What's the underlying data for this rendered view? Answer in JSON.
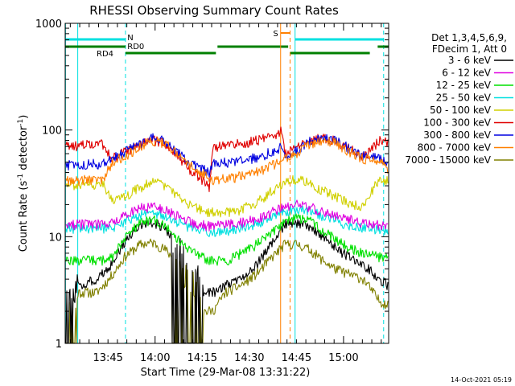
{
  "chart_data": {
    "type": "line",
    "title": "RHESSI Observing Summary Count Rates",
    "xlabel": "Start Time (29-Mar-08 13:31:22)",
    "ylabel_main": "Count Rate (s",
    "ylabel_sup1": "-1",
    "ylabel_mid": " detector",
    "ylabel_sup2": "-1",
    "ylabel_end": ")",
    "y_scale": "log",
    "ylim": [
      1,
      1000
    ],
    "y_ticks": [
      {
        "value": 1,
        "label": "1"
      },
      {
        "value": 10,
        "label": "10"
      },
      {
        "value": 100,
        "label": "100"
      },
      {
        "value": 1000,
        "label": "1000"
      }
    ],
    "xlim_minutes": [
      0,
      103
    ],
    "x_ticks": [
      {
        "minutes": 13.63,
        "label": "13:45"
      },
      {
        "minutes": 28.63,
        "label": "14:00"
      },
      {
        "minutes": 43.63,
        "label": "14:15"
      },
      {
        "minutes": 58.63,
        "label": "14:30"
      },
      {
        "minutes": 73.63,
        "label": "14:45"
      },
      {
        "minutes": 88.63,
        "label": "15:00"
      }
    ],
    "legend": {
      "placement": "right",
      "header": [
        "Det 1,3,4,5,6,9,",
        "FDecim 1, Att 0"
      ],
      "entries": [
        {
          "label": "3 - 6 keV",
          "color": "#000000"
        },
        {
          "label": "6 - 12 keV",
          "color": "#e000e0"
        },
        {
          "label": "12 - 25 keV",
          "color": "#00e000"
        },
        {
          "label": "25 - 50 keV",
          "color": "#00e0e0"
        },
        {
          "label": "50 - 100 keV",
          "color": "#d0d000"
        },
        {
          "label": "100 - 300 keV",
          "color": "#e00000"
        },
        {
          "label": "300 - 800 keV",
          "color": "#0000e0"
        },
        {
          "label": "800 - 7000 keV",
          "color": "#ff8000"
        },
        {
          "label": "7000 - 15000 keV",
          "color": "#808000"
        }
      ]
    },
    "flag_labels": {
      "night": "N",
      "rd0": "RD0",
      "rd4": "RD4",
      "saa": "S"
    },
    "timestamp": "14-Oct-2021 05:19",
    "series": [
      {
        "color": "#808000",
        "gaps": [
          [
            0,
            4
          ],
          [
            34,
            44
          ]
        ],
        "points": [
          [
            0,
            2.0
          ],
          [
            3,
            2.0
          ],
          [
            4,
            3.0
          ],
          [
            10,
            3.0
          ],
          [
            14,
            4.0
          ],
          [
            19,
            6.5
          ],
          [
            24,
            8.5
          ],
          [
            28,
            8.8
          ],
          [
            32,
            7.5
          ],
          [
            35,
            6.0
          ],
          [
            39,
            4.0
          ],
          [
            43,
            3.5
          ],
          [
            44,
            2.0
          ],
          [
            47,
            2.0
          ],
          [
            51,
            3.0
          ],
          [
            56,
            3.5
          ],
          [
            61,
            4.5
          ],
          [
            66,
            6.5
          ],
          [
            70,
            8.5
          ],
          [
            74,
            8.5
          ],
          [
            78,
            7.5
          ],
          [
            82,
            6.0
          ],
          [
            86,
            5.0
          ],
          [
            90,
            4.5
          ],
          [
            95,
            4.0
          ],
          [
            100,
            2.5
          ],
          [
            103,
            2.3
          ]
        ]
      },
      {
        "color": "#000000",
        "gaps": [
          [
            0,
            4
          ],
          [
            34,
            44
          ]
        ],
        "points": [
          [
            0,
            3.0
          ],
          [
            3,
            3.0
          ],
          [
            4,
            3.5
          ],
          [
            10,
            4.0
          ],
          [
            14,
            5.0
          ],
          [
            19,
            9.0
          ],
          [
            24,
            13.0
          ],
          [
            28,
            13.5
          ],
          [
            32,
            12.0
          ],
          [
            35,
            9.0
          ],
          [
            39,
            6.0
          ],
          [
            43,
            4.5
          ],
          [
            44,
            3.0
          ],
          [
            47,
            3.0
          ],
          [
            51,
            3.5
          ],
          [
            56,
            4.0
          ],
          [
            61,
            5.5
          ],
          [
            66,
            9.0
          ],
          [
            70,
            13.0
          ],
          [
            74,
            13.5
          ],
          [
            78,
            12.5
          ],
          [
            82,
            10.0
          ],
          [
            86,
            8.0
          ],
          [
            90,
            6.5
          ],
          [
            95,
            5.5
          ],
          [
            100,
            4.0
          ],
          [
            103,
            3.5
          ]
        ]
      },
      {
        "color": "#00e000",
        "gaps": [],
        "points": [
          [
            0,
            6.0
          ],
          [
            6,
            6.0
          ],
          [
            12,
            6.0
          ],
          [
            15,
            6.5
          ],
          [
            19,
            10.0
          ],
          [
            24,
            13.5
          ],
          [
            28,
            14.5
          ],
          [
            32,
            13.0
          ],
          [
            35,
            10.0
          ],
          [
            39,
            7.5
          ],
          [
            43,
            6.5
          ],
          [
            46,
            6.0
          ],
          [
            52,
            6.0
          ],
          [
            56,
            7.0
          ],
          [
            61,
            8.5
          ],
          [
            66,
            11.0
          ],
          [
            70,
            14.0
          ],
          [
            74,
            15.0
          ],
          [
            78,
            14.0
          ],
          [
            82,
            11.5
          ],
          [
            86,
            9.5
          ],
          [
            90,
            8.0
          ],
          [
            95,
            7.0
          ],
          [
            100,
            6.5
          ],
          [
            103,
            6.5
          ]
        ]
      },
      {
        "color": "#00e0e0",
        "gaps": [],
        "points": [
          [
            0,
            12.0
          ],
          [
            6,
            12.0
          ],
          [
            12,
            12.0
          ],
          [
            15,
            12.0
          ],
          [
            19,
            14.0
          ],
          [
            24,
            16.0
          ],
          [
            28,
            17.0
          ],
          [
            32,
            15.5
          ],
          [
            35,
            14.0
          ],
          [
            39,
            12.5
          ],
          [
            43,
            11.5
          ],
          [
            46,
            11.0
          ],
          [
            52,
            11.5
          ],
          [
            56,
            12.0
          ],
          [
            61,
            13.0
          ],
          [
            66,
            15.5
          ],
          [
            70,
            17.5
          ],
          [
            74,
            18.0
          ],
          [
            78,
            17.5
          ],
          [
            82,
            15.5
          ],
          [
            86,
            14.0
          ],
          [
            90,
            13.0
          ],
          [
            95,
            12.0
          ],
          [
            100,
            11.5
          ],
          [
            103,
            11.5
          ]
        ]
      },
      {
        "color": "#e000e0",
        "gaps": [],
        "points": [
          [
            0,
            13.0
          ],
          [
            6,
            13.0
          ],
          [
            12,
            13.0
          ],
          [
            15,
            13.5
          ],
          [
            19,
            16.0
          ],
          [
            24,
            18.5
          ],
          [
            28,
            19.0
          ],
          [
            32,
            18.0
          ],
          [
            35,
            16.0
          ],
          [
            39,
            14.0
          ],
          [
            43,
            13.0
          ],
          [
            46,
            12.5
          ],
          [
            52,
            13.0
          ],
          [
            56,
            13.5
          ],
          [
            61,
            14.5
          ],
          [
            66,
            17.0
          ],
          [
            70,
            19.0
          ],
          [
            74,
            20.0
          ],
          [
            78,
            19.0
          ],
          [
            82,
            17.0
          ],
          [
            86,
            15.5
          ],
          [
            90,
            14.5
          ],
          [
            95,
            13.5
          ],
          [
            100,
            13.0
          ],
          [
            103,
            12.5
          ]
        ]
      },
      {
        "color": "#d0d000",
        "gaps": [],
        "points": [
          [
            0,
            30.0
          ],
          [
            6,
            31.0
          ],
          [
            12,
            31.0
          ],
          [
            15,
            21.0
          ],
          [
            19,
            24.0
          ],
          [
            24,
            29.0
          ],
          [
            28,
            33.0
          ],
          [
            32,
            29.0
          ],
          [
            35,
            25.0
          ],
          [
            39,
            20.0
          ],
          [
            43,
            18.0
          ],
          [
            46,
            17.0
          ],
          [
            52,
            17.0
          ],
          [
            56,
            18.0
          ],
          [
            61,
            21.0
          ],
          [
            66,
            27.0
          ],
          [
            70,
            33.0
          ],
          [
            74,
            35.0
          ],
          [
            78,
            32.0
          ],
          [
            82,
            27.0
          ],
          [
            86,
            24.0
          ],
          [
            90,
            21.0
          ],
          [
            95,
            19.0
          ],
          [
            100,
            35.0
          ],
          [
            103,
            33.0
          ]
        ]
      },
      {
        "color": "#e00000",
        "gaps": [],
        "points": [
          [
            0,
            70.0
          ],
          [
            6,
            72.0
          ],
          [
            12,
            74.0
          ],
          [
            15,
            55.0
          ],
          [
            19,
            62.0
          ],
          [
            24,
            73.0
          ],
          [
            28,
            80.0
          ],
          [
            32,
            75.0
          ],
          [
            35,
            62.0
          ],
          [
            39,
            45.0
          ],
          [
            43,
            35.0
          ],
          [
            46,
            29.0
          ],
          [
            47,
            70.0
          ],
          [
            52,
            72.0
          ],
          [
            56,
            75.0
          ],
          [
            61,
            80.0
          ],
          [
            66,
            88.0
          ],
          [
            69,
            100.0
          ],
          [
            70,
            60.0
          ],
          [
            74,
            70.0
          ],
          [
            78,
            80.0
          ],
          [
            82,
            85.0
          ],
          [
            86,
            80.0
          ],
          [
            90,
            68.0
          ],
          [
            95,
            55.0
          ],
          [
            100,
            80.0
          ],
          [
            103,
            75.0
          ]
        ]
      },
      {
        "color": "#0000e0",
        "gaps": [],
        "points": [
          [
            0,
            47.0
          ],
          [
            6,
            48.0
          ],
          [
            12,
            48.0
          ],
          [
            15,
            55.0
          ],
          [
            19,
            62.0
          ],
          [
            24,
            75.0
          ],
          [
            28,
            84.0
          ],
          [
            32,
            78.0
          ],
          [
            35,
            66.0
          ],
          [
            39,
            52.0
          ],
          [
            43,
            44.0
          ],
          [
            46,
            40.0
          ],
          [
            47,
            48.0
          ],
          [
            52,
            50.0
          ],
          [
            56,
            52.0
          ],
          [
            61,
            55.0
          ],
          [
            66,
            63.0
          ],
          [
            69,
            70.0
          ],
          [
            70,
            55.0
          ],
          [
            74,
            66.0
          ],
          [
            78,
            78.0
          ],
          [
            82,
            85.0
          ],
          [
            86,
            80.0
          ],
          [
            90,
            68.0
          ],
          [
            95,
            58.0
          ],
          [
            100,
            55.0
          ],
          [
            103,
            50.0
          ]
        ]
      },
      {
        "color": "#ff8000",
        "gaps": [],
        "points": [
          [
            0,
            33.0
          ],
          [
            6,
            34.0
          ],
          [
            12,
            35.0
          ],
          [
            15,
            50.0
          ],
          [
            19,
            57.0
          ],
          [
            24,
            70.0
          ],
          [
            28,
            80.0
          ],
          [
            32,
            74.0
          ],
          [
            35,
            62.0
          ],
          [
            39,
            48.0
          ],
          [
            43,
            40.0
          ],
          [
            46,
            36.0
          ],
          [
            47,
            34.0
          ],
          [
            52,
            35.0
          ],
          [
            56,
            37.0
          ],
          [
            61,
            40.0
          ],
          [
            66,
            47.0
          ],
          [
            69,
            52.0
          ],
          [
            70,
            53.0
          ],
          [
            74,
            62.0
          ],
          [
            78,
            74.0
          ],
          [
            82,
            80.0
          ],
          [
            86,
            76.0
          ],
          [
            90,
            64.0
          ],
          [
            95,
            54.0
          ],
          [
            100,
            50.0
          ],
          [
            103,
            43.0
          ]
        ]
      }
    ]
  }
}
